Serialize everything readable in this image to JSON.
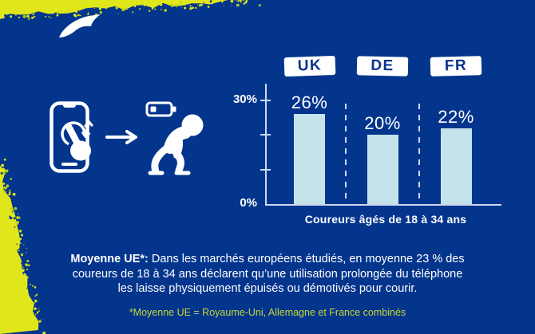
{
  "colors": {
    "background": "#04358D",
    "bar": "#C5E3EA",
    "axis": "#CBD9F0",
    "accent_yellow": "#DFE71A",
    "accent_yellow_dark": "#B7CF1B",
    "footnote_text": "#C3D637",
    "chip_bg": "#FFFFFF",
    "chip_text": "#0A338A",
    "text": "#FFFFFF"
  },
  "brand": {
    "logo_icon": "brooks-swoosh-logo"
  },
  "illustration": {
    "icons": [
      "phone-icon",
      "tap-hand-icon",
      "scroll-arrows-icon",
      "arrow-right-icon",
      "low-battery-icon",
      "exhausted-runner-icon"
    ]
  },
  "chart_data": {
    "type": "bar",
    "title": "",
    "categories": [
      "UK",
      "DE",
      "FR"
    ],
    "values": [
      26,
      20,
      22
    ],
    "value_labels": [
      "26%",
      "20%",
      "22%"
    ],
    "xlabel": "Coureurs âgés de 18 à 34 ans",
    "ylabel": "",
    "ylim": [
      0,
      34
    ],
    "yticks": [
      {
        "value": 30,
        "label": "30%"
      },
      {
        "value": 20,
        "label": ""
      },
      {
        "value": 10,
        "label": ""
      },
      {
        "value": 0,
        "label": "0%"
      }
    ],
    "legend": "none",
    "grid": "dashed vertical separators between categories"
  },
  "caption": {
    "lead": "Moyenne UE*:",
    "line1_rest": " Dans les marchés européens étudiés, en moyenne 23 % des",
    "line2": "coureurs de 18 à 34 ans déclarent qu’une utilisation prolongée du téléphone",
    "line3": "les laisse physiquement épuisés ou démotivés pour courir."
  },
  "footnote": "*Moyenne UE = Royaume-Uni, Allemagne et France combinés"
}
